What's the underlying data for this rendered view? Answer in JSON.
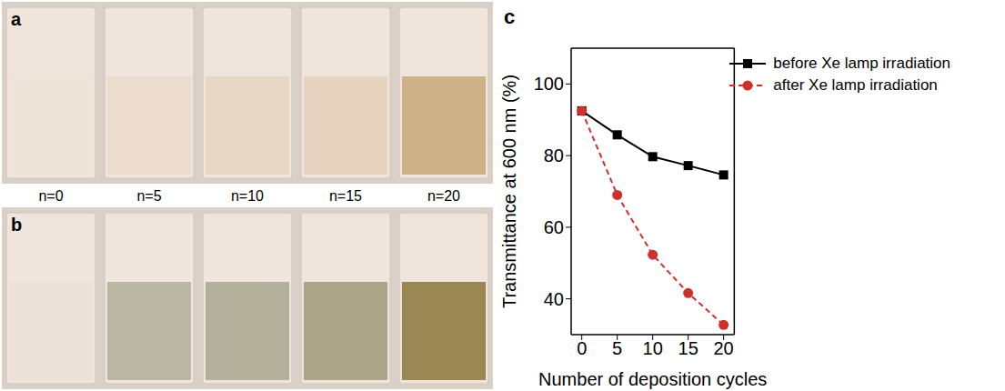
{
  "photos": {
    "panels": [
      {
        "letter": "a",
        "colors": [
          "#efe4da",
          "#ecdccd",
          "#e9d7c5",
          "#e7d4c0",
          "#cdb288"
        ]
      },
      {
        "letter": "b",
        "colors": [
          "#ebe3db",
          "#bab7a5",
          "#b3b09b",
          "#a9a586",
          "#998853"
        ]
      }
    ],
    "sample_labels": [
      "n=0",
      "n=5",
      "n=10",
      "n=15",
      "n=20"
    ]
  },
  "chart_data": {
    "type": "line",
    "panel_letter": "c",
    "x_label": "Number of deposition cycles",
    "y_label": "Transmittance at 600 nm (%)",
    "x": [
      0,
      5,
      10,
      15,
      20
    ],
    "xlim": [
      -1.5,
      21.5
    ],
    "xticks": [
      0,
      5,
      10,
      15,
      20
    ],
    "ylim": [
      30,
      110
    ],
    "yticks": [
      40,
      60,
      80,
      100
    ],
    "legend": "upper right",
    "series": [
      {
        "name": "before Xe lamp irradiation",
        "color": "#000000",
        "marker": "square",
        "line_style": "solid",
        "values": [
          92.5,
          85.8,
          79.7,
          77.2,
          74.6
        ]
      },
      {
        "name": "after Xe lamp irradiation",
        "color": "#d0302c",
        "marker": "circle",
        "line_style": "dashed",
        "values": [
          92.5,
          69.0,
          52.3,
          41.6,
          32.7
        ]
      }
    ]
  }
}
